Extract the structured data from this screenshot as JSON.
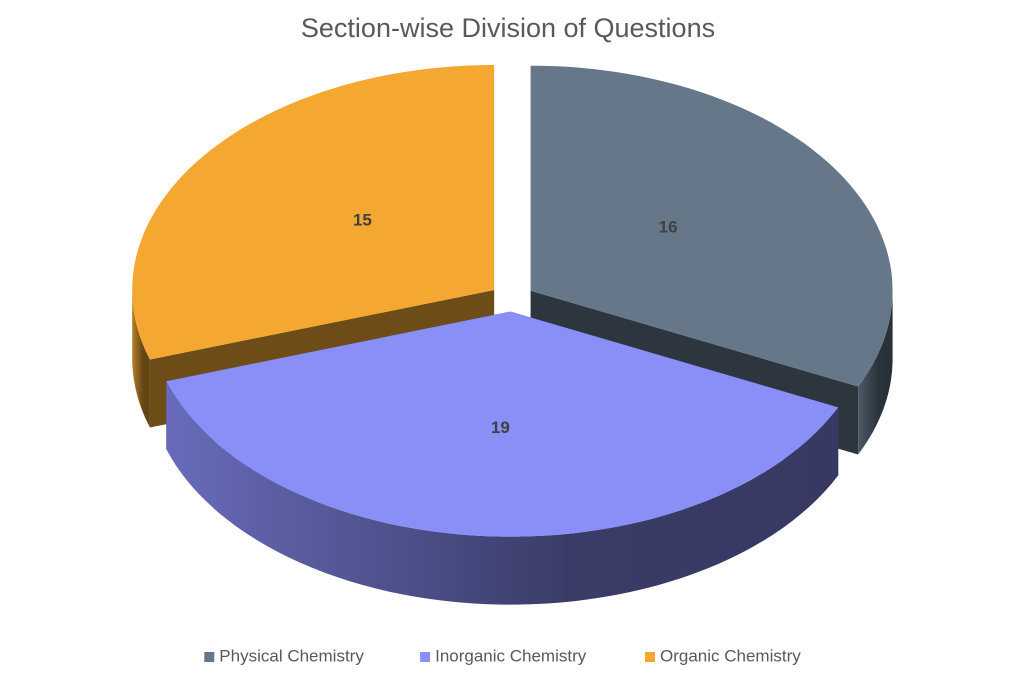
{
  "chart_data": {
    "type": "pie",
    "title": "Section-wise Division of Questions",
    "categories": [
      "Physical Chemistry",
      "Inorganic Chemistry",
      "Organic Chemistry"
    ],
    "values": [
      16,
      19,
      15
    ],
    "colors": [
      "#657789",
      "#8a8ff8",
      "#f4a832"
    ],
    "legend": "bottom"
  }
}
